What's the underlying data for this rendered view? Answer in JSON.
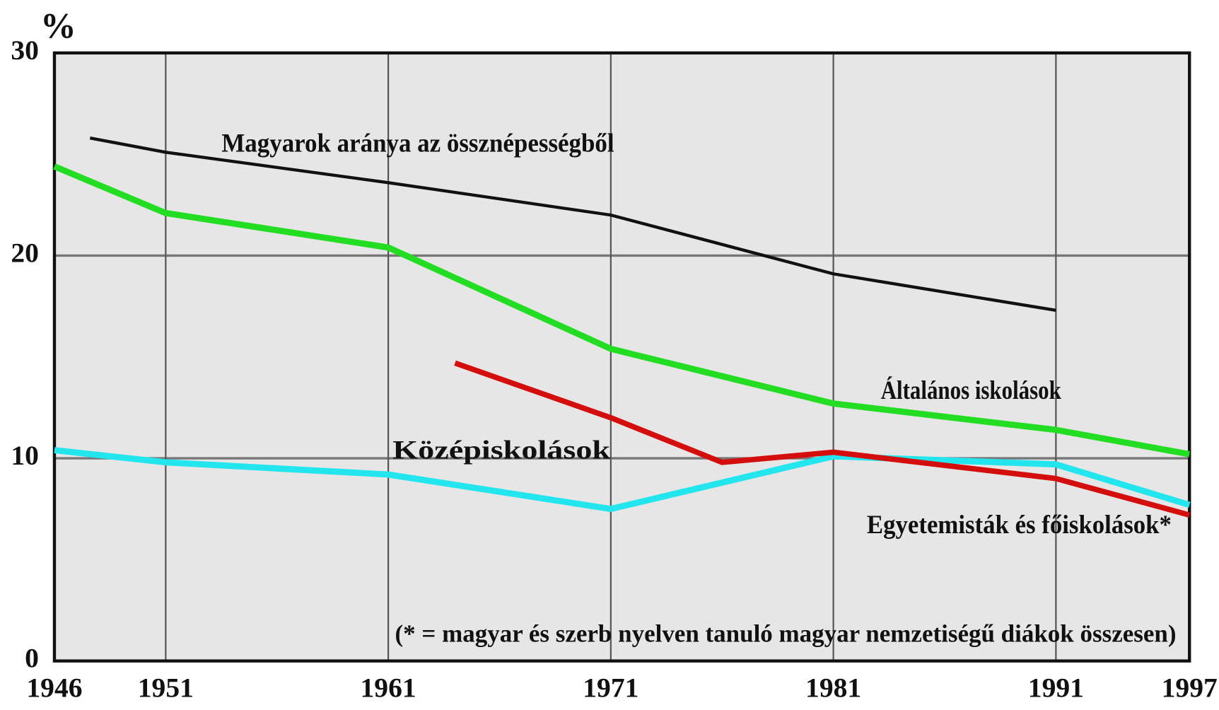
{
  "chart_data": {
    "type": "line",
    "y_label": "%",
    "note": "(* = magyar és szerb nyelven tanuló magyar nemzetiségű diákok összesen)",
    "xlim": [
      1946,
      1997
    ],
    "xticks": [
      1946,
      1951,
      1961,
      1971,
      1981,
      1991,
      1997
    ],
    "ylim": [
      0,
      30
    ],
    "yticks": [
      0,
      10,
      20,
      30
    ],
    "grid": true,
    "series": [
      {
        "name": "Magyarok aránya az össznépességből",
        "color": "#111111",
        "x": [
          1947.6,
          1951,
          1961,
          1971,
          1981,
          1991
        ],
        "values": [
          25.8,
          25.1,
          23.6,
          22.0,
          19.1,
          17.3
        ]
      },
      {
        "name": "Általános iskolások",
        "color": "#22dd22",
        "x": [
          1946,
          1951,
          1961,
          1971,
          1981,
          1991,
          1997
        ],
        "values": [
          24.4,
          22.1,
          20.4,
          15.4,
          12.7,
          11.4,
          10.2
        ]
      },
      {
        "name": "Középiskolások",
        "color": "#22e5ee",
        "x": [
          1946,
          1951,
          1961,
          1971,
          1981,
          1991,
          1997
        ],
        "values": [
          10.4,
          9.8,
          9.2,
          7.5,
          10.1,
          9.7,
          7.7
        ]
      },
      {
        "name": "Egyetemisták és főiskolások*",
        "color": "#d40d0d",
        "x": [
          1964,
          1971,
          1976,
          1981,
          1991,
          1997
        ],
        "values": [
          14.7,
          12.0,
          9.8,
          10.3,
          9.0,
          7.2
        ]
      }
    ]
  }
}
